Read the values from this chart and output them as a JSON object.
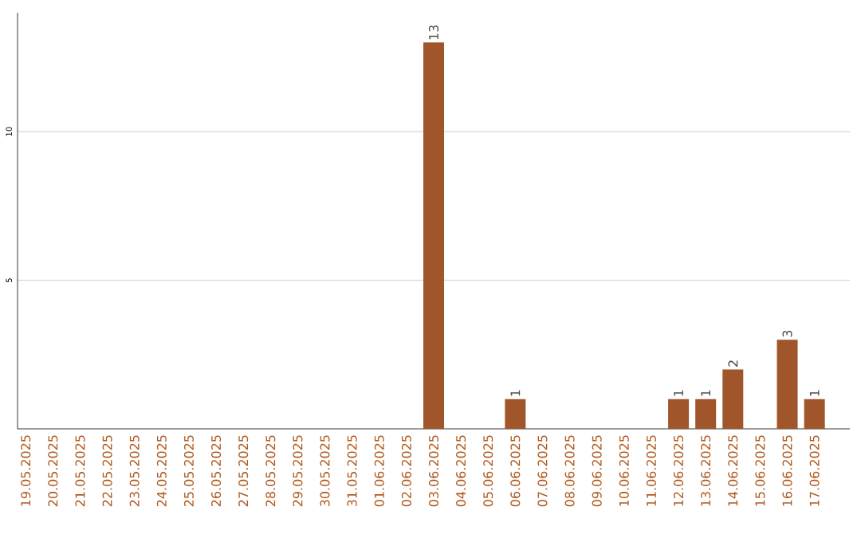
{
  "chart_data": {
    "type": "bar",
    "categories": [
      "19.05.2025",
      "20.05.2025",
      "21.05.2025",
      "22.05.2025",
      "23.05.2025",
      "24.05.2025",
      "25.05.2025",
      "26.05.2025",
      "27.05.2025",
      "28.05.2025",
      "29.05.2025",
      "30.05.2025",
      "31.05.2025",
      "01.06.2025",
      "02.06.2025",
      "03.06.2025",
      "04.06.2025",
      "05.06.2025",
      "06.06.2025",
      "07.06.2025",
      "08.06.2025",
      "09.06.2025",
      "10.06.2025",
      "11.06.2025",
      "12.06.2025",
      "13.06.2025",
      "14.06.2025",
      "15.06.2025",
      "16.06.2025",
      "17.06.2025"
    ],
    "values": [
      0,
      0,
      0,
      0,
      0,
      0,
      0,
      0,
      0,
      0,
      0,
      0,
      0,
      0,
      0,
      13,
      0,
      0,
      1,
      0,
      0,
      0,
      0,
      0,
      1,
      1,
      2,
      0,
      3,
      1
    ],
    "value_labels": [
      null,
      null,
      null,
      null,
      null,
      null,
      null,
      null,
      null,
      null,
      null,
      null,
      null,
      null,
      null,
      "13",
      null,
      null,
      "1",
      null,
      null,
      null,
      null,
      null,
      "1",
      "1",
      "2",
      null,
      "3",
      "1"
    ],
    "color": "#a0562a",
    "ylim": [
      0,
      14
    ],
    "yticks": [
      5,
      10
    ],
    "grid": "y"
  }
}
